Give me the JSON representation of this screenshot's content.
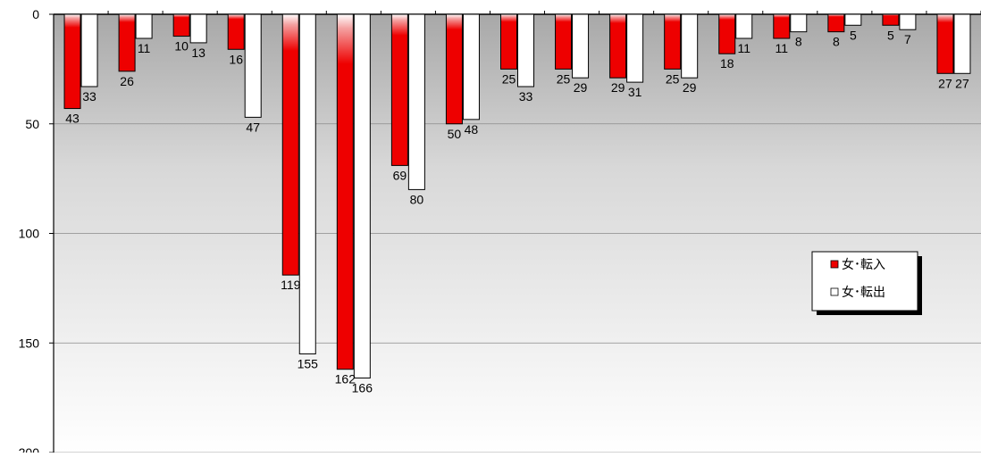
{
  "chart_data": {
    "type": "bar",
    "orientation": "vertical",
    "y_axis_inverted": true,
    "ylim": [
      0,
      200
    ],
    "y_ticks": [
      0,
      50,
      100,
      150,
      200
    ],
    "grid": true,
    "legend_position": "right-middle",
    "series": [
      {
        "name": "女･転入",
        "color": "#ee0000",
        "values": [
          43,
          26,
          10,
          16,
          119,
          162,
          69,
          50,
          25,
          25,
          29,
          25,
          18,
          11,
          8,
          5,
          27
        ]
      },
      {
        "name": "女･転出",
        "color": "#ffffff",
        "values": [
          33,
          11,
          13,
          47,
          155,
          166,
          80,
          48,
          33,
          29,
          31,
          29,
          11,
          8,
          5,
          7,
          27
        ]
      }
    ]
  }
}
